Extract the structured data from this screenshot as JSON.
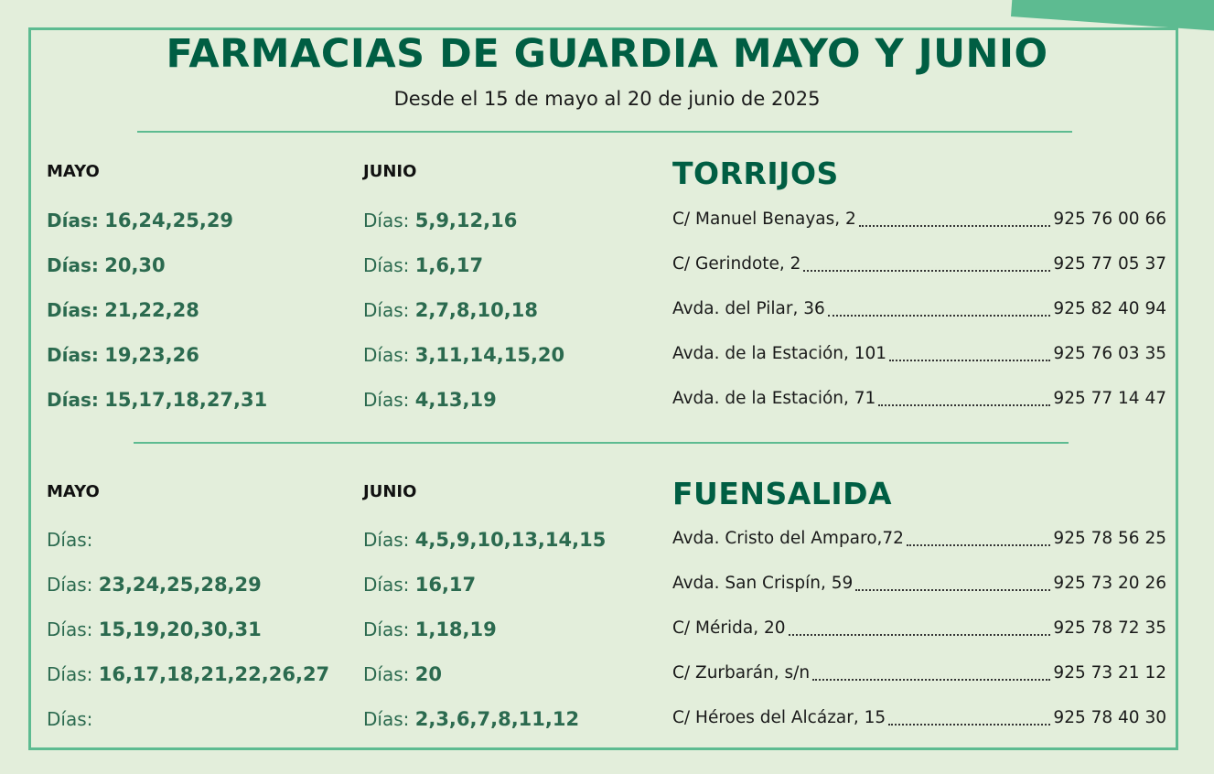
{
  "header": {
    "title": "FARMACIAS DE GUARDIA MAYO Y JUNIO",
    "subtitle": "Desde el 15 de mayo al 20 de junio de 2025"
  },
  "col_labels": {
    "mayo": "MAYO",
    "junio": "JUNIO"
  },
  "torrijos": {
    "town": "TORRIJOS",
    "rows": [
      {
        "mayo_label": "Días:",
        "mayo_days": "16,24,25,29",
        "junio_label": "Días:",
        "junio_days": "5,9,12,16",
        "address": "C/ Manuel Benayas, 2",
        "phone": "925 76 00 66"
      },
      {
        "mayo_label": "Días:",
        "mayo_days": "20,30",
        "junio_label": "Días:",
        "junio_days": "1,6,17",
        "address": "C/ Gerindote, 2",
        "phone": "925 77 05 37"
      },
      {
        "mayo_label": "Días:",
        "mayo_days": "21,22,28",
        "junio_label": "Días:",
        "junio_days": "2,7,8,10,18",
        "address": "Avda. del Pilar, 36",
        "phone": "925 82 40 94"
      },
      {
        "mayo_label": "Días:",
        "mayo_days": "19,23,26",
        "junio_label": "Días:",
        "junio_days": "3,11,14,15,20",
        "address": "Avda. de la Estación, 101",
        "phone": "925 76 03 35"
      },
      {
        "mayo_label": "Días:",
        "mayo_days": "15,17,18,27,31",
        "junio_label": "Días:",
        "junio_days": "4,13,19",
        "address": "Avda. de la Estación, 71",
        "phone": "925 77 14 47"
      }
    ]
  },
  "fuensalida": {
    "town": "FUENSALIDA",
    "rows": [
      {
        "mayo_label": "Días:",
        "mayo_days": "",
        "junio_label": "Días:",
        "junio_days": "4,5,9,10,13,14,15",
        "address": "Avda. Cristo del Amparo,72",
        "phone": "925 78 56 25"
      },
      {
        "mayo_label": "Días:",
        "mayo_days": "23,24,25,28,29",
        "junio_label": "Días:",
        "junio_days": "16,17",
        "address": "Avda. San Crispín, 59",
        "phone": "925 73 20 26"
      },
      {
        "mayo_label": "Días:",
        "mayo_days": "15,19,20,30,31",
        "junio_label": "Días:",
        "junio_days": "1,18,19",
        "address": "C/ Mérida, 20",
        "phone": "925 78 72 35"
      },
      {
        "mayo_label": "Días:",
        "mayo_days": "16,17,18,21,22,26,27",
        "junio_label": "Días:",
        "junio_days": "20",
        "address": "C/ Zurbarán, s/n",
        "phone": "925 73 21 12"
      },
      {
        "mayo_label": "Días:",
        "mayo_days": "",
        "junio_label": "Días:",
        "junio_days": "2,3,6,7,8,11,12",
        "address": "C/ Héroes del Alcázar, 15",
        "phone": "925 78 40 30"
      }
    ]
  },
  "colors": {
    "brand_green": "#005e43",
    "accent_green": "#5dbb91",
    "text_green": "#2b6a4f",
    "background": "#e3eedb"
  }
}
